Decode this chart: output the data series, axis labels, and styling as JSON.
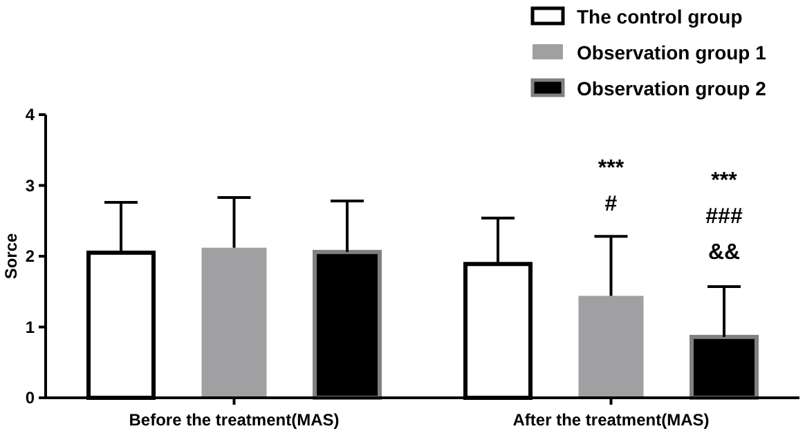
{
  "chart_data": {
    "type": "bar",
    "ylabel": "Sorce",
    "categories": [
      "Before the treatment(MAS)",
      "After the treatment(MAS)"
    ],
    "series": [
      {
        "name": "The control group",
        "color": "#ffffff",
        "values": [
          2.05,
          1.89
        ],
        "errors": [
          [
            2.05,
            2.76
          ],
          [
            1.89,
            2.54
          ]
        ]
      },
      {
        "name": "Observation group 1",
        "color": "#a0a0a2",
        "values": [
          2.12,
          1.44
        ],
        "errors": [
          [
            2.12,
            2.83
          ],
          [
            1.44,
            2.28
          ]
        ]
      },
      {
        "name": "Observation group 2",
        "color": "#000000",
        "values": [
          2.06,
          0.86
        ],
        "errors": [
          [
            2.06,
            2.78
          ],
          [
            0.86,
            1.57
          ]
        ]
      }
    ],
    "ylim": [
      0,
      4
    ],
    "yticks": [
      0,
      1,
      2,
      3,
      4
    ],
    "grid": false,
    "legend": "top right",
    "annotations": [
      "***",
      "#",
      "***",
      "###",
      "&&"
    ]
  }
}
